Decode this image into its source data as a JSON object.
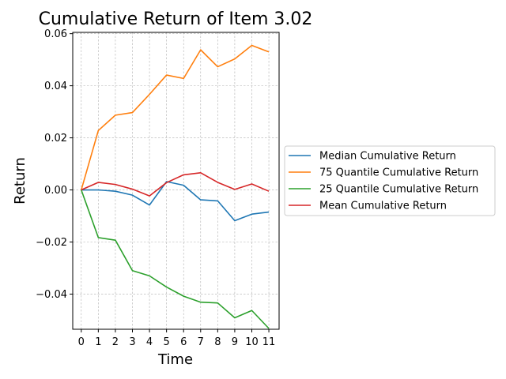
{
  "chart_data": {
    "type": "line",
    "title": "Cumulative Return of Item 3.02",
    "xlabel": "Time",
    "ylabel": "Return",
    "x": [
      0,
      1,
      2,
      3,
      4,
      5,
      6,
      7,
      8,
      9,
      10,
      11
    ],
    "xlim": [
      -0.5,
      11.6
    ],
    "ylim": [
      -0.0535,
      0.0605
    ],
    "xticks": [
      "0",
      "1",
      "2",
      "3",
      "4",
      "5",
      "6",
      "7",
      "8",
      "9",
      "10",
      "11"
    ],
    "yticks": [
      {
        "value": 0.06,
        "label": "0.06"
      },
      {
        "value": 0.04,
        "label": "0.04"
      },
      {
        "value": 0.02,
        "label": "0.02"
      },
      {
        "value": 0.0,
        "label": "0.00"
      },
      {
        "value": -0.02,
        "label": "−0.02"
      },
      {
        "value": -0.04,
        "label": "−0.04"
      }
    ],
    "grid": true,
    "legend_position": "center-right outside",
    "series": [
      {
        "name": "Median Cumulative Return",
        "color": "#1f77b4",
        "values": [
          0.0,
          0.0,
          -0.0005,
          -0.002,
          -0.0058,
          0.0032,
          0.0018,
          -0.0038,
          -0.0042,
          -0.0118,
          -0.0093,
          -0.0085
        ]
      },
      {
        "name": "75 Quantile Cumulative Return",
        "color": "#ff7f0e",
        "values": [
          0.0,
          0.0228,
          0.0287,
          0.0297,
          0.0367,
          0.0441,
          0.0428,
          0.0538,
          0.0473,
          0.0503,
          0.0555,
          0.053
        ]
      },
      {
        "name": "25 Quantile Cumulative Return",
        "color": "#2ca02c",
        "values": [
          0.0,
          -0.0183,
          -0.0193,
          -0.031,
          -0.033,
          -0.0373,
          -0.0408,
          -0.0431,
          -0.0434,
          -0.0491,
          -0.0463,
          -0.0532
        ]
      },
      {
        "name": "Mean Cumulative Return",
        "color": "#d62728",
        "values": [
          0.0,
          0.0029,
          0.0021,
          0.0003,
          -0.0023,
          0.0028,
          0.0058,
          0.0066,
          0.0029,
          0.0002,
          0.0023,
          -0.0005
        ]
      }
    ]
  }
}
